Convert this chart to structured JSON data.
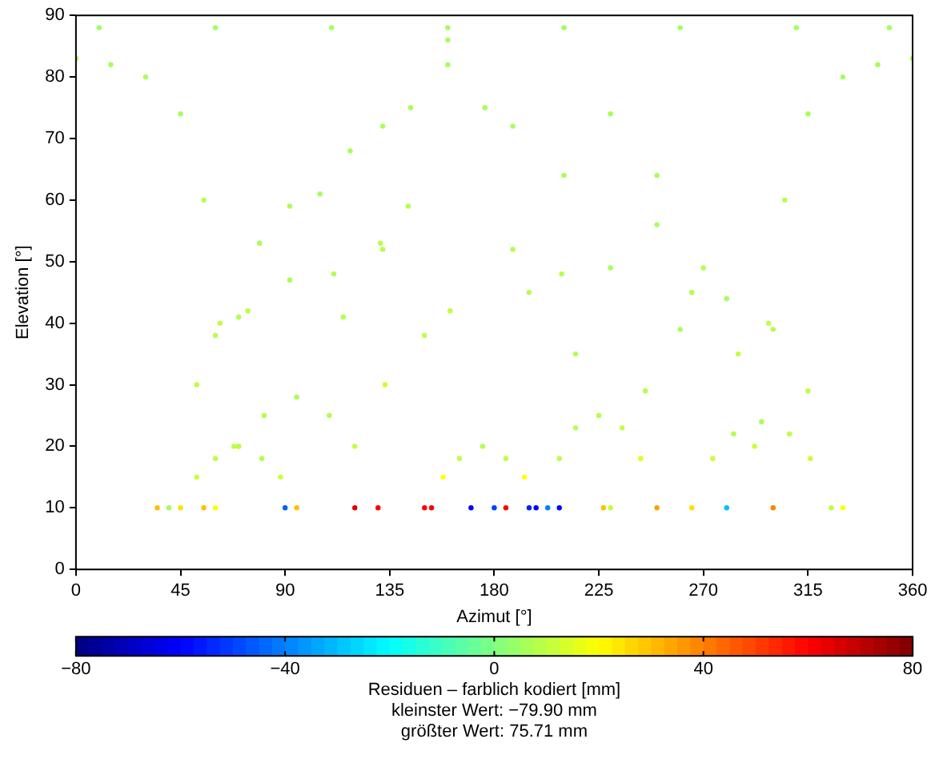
{
  "chart_data": {
    "type": "scatter",
    "xlabel": "Azimut [°]",
    "ylabel": "Elevation [°]",
    "clabel": "Residuen – farblich kodiert [mm]",
    "annotations": [
      "kleinster Wert: −79.90 mm",
      "größter Wert: 75.71 mm"
    ],
    "xlim": [
      0,
      360
    ],
    "xticks": [
      0,
      45,
      90,
      135,
      180,
      225,
      270,
      315,
      360
    ],
    "ylim": [
      0,
      90
    ],
    "yticks": [
      0,
      10,
      20,
      30,
      40,
      50,
      60,
      70,
      80,
      90
    ],
    "clim": [
      -80,
      80
    ],
    "cticks": [
      -80,
      -40,
      0,
      40,
      80
    ],
    "grid": false,
    "legend": false,
    "marker": "circle",
    "x": [
      35,
      52,
      70,
      92,
      115,
      133,
      150,
      40,
      60,
      79,
      105,
      131,
      150,
      170,
      55,
      74,
      92,
      118,
      143,
      161,
      180,
      60,
      70,
      81,
      95,
      109,
      120,
      130,
      45,
      52,
      60,
      70,
      80,
      88,
      95,
      120,
      132,
      144,
      160,
      176,
      188,
      198,
      230,
      245,
      260,
      280,
      300,
      315,
      330,
      265,
      274,
      283,
      295,
      307,
      316,
      325,
      203,
      215,
      230,
      250,
      270,
      285,
      300,
      185,
      195,
      210,
      230,
      250,
      265,
      280,
      153,
      158,
      165,
      175,
      185,
      193,
      195,
      208,
      208,
      215,
      225,
      235,
      243,
      250,
      0,
      15,
      30,
      45,
      55,
      62,
      68,
      360,
      345,
      330,
      315,
      305,
      298,
      292,
      10,
      60,
      110,
      160,
      210,
      260,
      310,
      350,
      90,
      111,
      132,
      160,
      188,
      209,
      227
    ],
    "values": [
      10,
      30,
      41,
      47,
      41,
      30,
      10,
      10,
      38,
      53,
      61,
      53,
      38,
      10,
      10,
      42,
      59,
      68,
      59,
      42,
      10,
      10,
      20,
      25,
      28,
      25,
      20,
      10,
      10,
      15,
      18,
      20,
      18,
      15,
      10,
      10,
      52,
      75,
      86,
      75,
      52,
      10,
      10,
      29,
      39,
      44,
      39,
      29,
      10,
      10,
      18,
      22,
      24,
      22,
      18,
      10,
      10,
      35,
      49,
      56,
      49,
      35,
      10,
      10,
      45,
      64,
      74,
      64,
      45,
      10,
      10,
      15,
      18,
      20,
      18,
      15,
      10,
      10,
      18,
      23,
      25,
      23,
      18,
      10,
      83,
      82,
      80,
      74,
      60,
      40,
      20,
      83,
      82,
      80,
      74,
      60,
      40,
      20,
      88,
      88,
      88,
      88,
      88,
      88,
      88,
      88,
      10,
      48,
      72,
      82,
      72,
      48,
      10
    ],
    "cvalues": [
      30,
      10,
      8,
      6,
      8,
      12,
      60,
      5,
      8,
      6,
      6,
      8,
      10,
      -60,
      30,
      10,
      6,
      6,
      8,
      10,
      -50,
      20,
      12,
      8,
      6,
      8,
      10,
      60,
      25,
      12,
      10,
      8,
      8,
      12,
      30,
      65,
      8,
      6,
      6,
      6,
      8,
      -60,
      10,
      8,
      6,
      6,
      8,
      10,
      20,
      25,
      12,
      8,
      6,
      10,
      12,
      10,
      -40,
      8,
      6,
      6,
      8,
      10,
      40,
      60,
      8,
      6,
      6,
      6,
      8,
      -30,
      60,
      20,
      10,
      8,
      10,
      20,
      -55,
      -60,
      10,
      8,
      8,
      10,
      15,
      35,
      6,
      6,
      6,
      6,
      8,
      10,
      10,
      6,
      6,
      6,
      6,
      8,
      10,
      12,
      5,
      5,
      5,
      5,
      5,
      5,
      5,
      5,
      -45,
      8,
      6,
      6,
      6,
      8,
      30
    ]
  }
}
